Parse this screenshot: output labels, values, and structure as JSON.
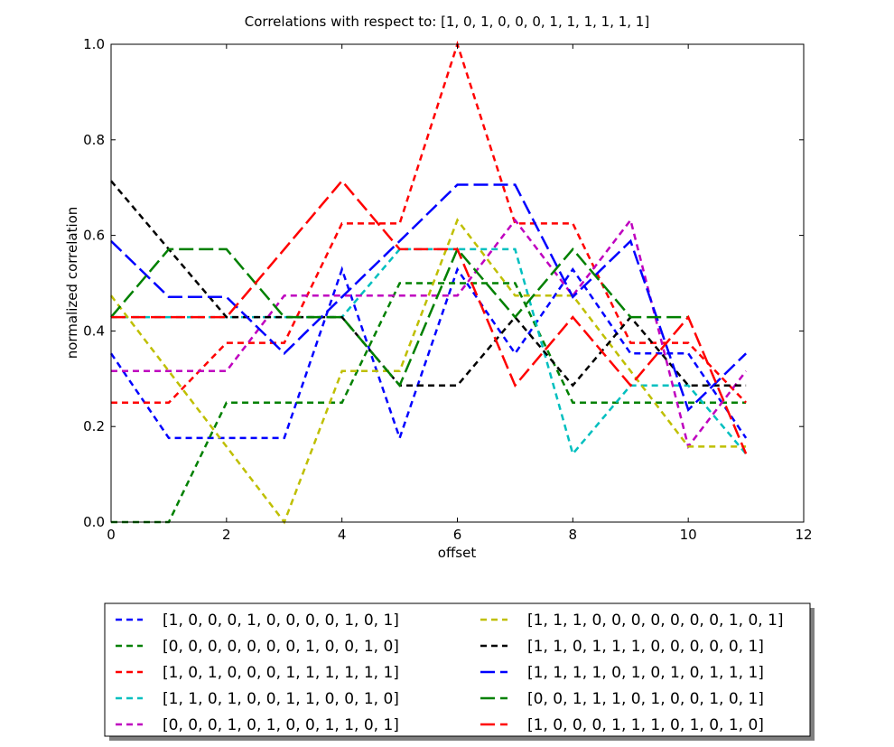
{
  "chart_data": {
    "type": "line",
    "title": "Correlations with respect to: [1, 0, 1, 0, 0, 0, 1, 1, 1, 1, 1, 1]",
    "xlabel": "offset",
    "ylabel": "normalized correlation",
    "xlim": [
      0,
      12
    ],
    "ylim": [
      0.0,
      1.0
    ],
    "xticks": [
      0,
      2,
      4,
      6,
      8,
      10,
      12
    ],
    "yticks": [
      0.0,
      0.2,
      0.4,
      0.6,
      0.8,
      1.0
    ],
    "xtick_labels": [
      "0",
      "2",
      "4",
      "6",
      "8",
      "10",
      "12"
    ],
    "ytick_labels": [
      "0.0",
      "0.2",
      "0.4",
      "0.6",
      "0.8",
      "1.0"
    ],
    "grid": false,
    "legend_placement": "below plot, two columns",
    "x": [
      0,
      1,
      2,
      3,
      4,
      5,
      6,
      7,
      8,
      9,
      10,
      11
    ],
    "series": [
      {
        "name": "[1, 0, 0, 0, 1, 0, 0, 0, 0, 1, 0, 1]",
        "color": "#0000ff",
        "dash": "short",
        "values": [
          0.353,
          0.176,
          0.176,
          0.176,
          0.529,
          0.176,
          0.529,
          0.353,
          0.529,
          0.353,
          0.353,
          0.176
        ]
      },
      {
        "name": "[0, 0, 0, 0, 0, 0, 0, 1, 0, 0, 1, 0]",
        "color": "#008000",
        "dash": "short",
        "values": [
          0.0,
          0.0,
          0.25,
          0.25,
          0.25,
          0.5,
          0.5,
          0.5,
          0.25,
          0.25,
          0.25,
          0.25
        ]
      },
      {
        "name": "[1, 0, 1, 0, 0, 0, 1, 1, 1, 1, 1, 1]",
        "color": "#ff0000",
        "dash": "short",
        "values": [
          0.25,
          0.25,
          0.375,
          0.375,
          0.625,
          0.625,
          1.0,
          0.625,
          0.625,
          0.375,
          0.375,
          0.25
        ]
      },
      {
        "name": "[1, 1, 0, 1, 0, 0, 1, 1, 0, 0, 1, 0]",
        "color": "#00bfbf",
        "dash": "short",
        "values": [
          0.429,
          0.429,
          0.429,
          0.429,
          0.429,
          0.571,
          0.571,
          0.571,
          0.143,
          0.286,
          0.286,
          0.143
        ]
      },
      {
        "name": "[0, 0, 0, 1, 0, 1, 0, 0, 1, 1, 0, 1]",
        "color": "#bf00bf",
        "dash": "short",
        "values": [
          0.316,
          0.316,
          0.316,
          0.474,
          0.474,
          0.474,
          0.474,
          0.632,
          0.474,
          0.632,
          0.158,
          0.316
        ]
      },
      {
        "name": "[1, 1, 1, 0, 0, 0, 0, 0, 0, 0, 1, 0, 1]",
        "color": "#bfbf00",
        "dash": "short",
        "values": [
          0.474,
          0.316,
          0.158,
          0.0,
          0.316,
          0.316,
          0.632,
          0.474,
          0.474,
          0.316,
          0.158,
          0.158
        ]
      },
      {
        "name": "[1, 1, 0, 1, 1, 1, 0, 0, 0, 0, 0, 1]",
        "color": "#000000",
        "dash": "short",
        "values": [
          0.714,
          0.571,
          0.429,
          0.429,
          0.429,
          0.286,
          0.286,
          0.429,
          0.286,
          0.429,
          0.286,
          0.286
        ]
      },
      {
        "name": "[1, 1, 1, 1, 0, 1, 0, 1, 0, 1, 1, 1]",
        "color": "#0000ff",
        "dash": "long",
        "values": [
          0.588,
          0.471,
          0.471,
          0.353,
          0.471,
          0.588,
          0.706,
          0.706,
          0.471,
          0.588,
          0.235,
          0.353
        ]
      },
      {
        "name": "[0, 0, 1, 1, 1, 0, 1, 0, 0, 1, 0, 1]",
        "color": "#008000",
        "dash": "long",
        "values": [
          0.429,
          0.571,
          0.571,
          0.429,
          0.429,
          0.286,
          0.571,
          0.429,
          0.571,
          0.429,
          0.429,
          null
        ]
      },
      {
        "name": "[1, 0, 0, 0, 1, 1, 1, 0, 1, 0, 1, 0]",
        "color": "#ff0000",
        "dash": "long",
        "values": [
          0.429,
          0.429,
          0.429,
          0.571,
          0.714,
          0.571,
          0.571,
          0.286,
          0.429,
          0.286,
          0.429,
          0.143
        ]
      }
    ]
  }
}
